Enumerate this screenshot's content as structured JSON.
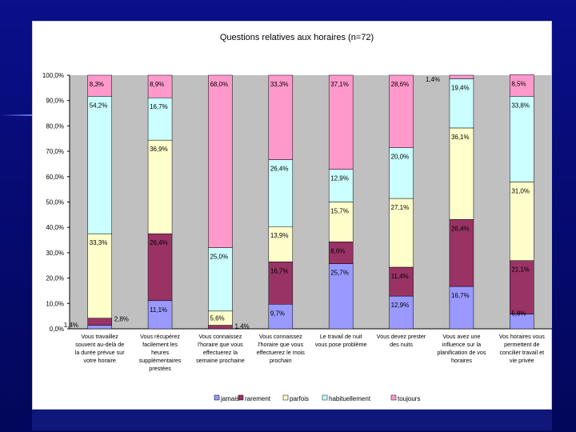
{
  "chart_data": {
    "type": "bar",
    "stacked": true,
    "title": "Questions relatives aux horaires (n=72)",
    "ylim": [
      0,
      100
    ],
    "yticks": [
      "0,0%",
      "10,0%",
      "20,0%",
      "30,0%",
      "40,0%",
      "50,0%",
      "60,0%",
      "70,0%",
      "80,0%",
      "90,0%",
      "100,0%"
    ],
    "grid": false,
    "legend_position": "bottom",
    "categories": [
      [
        "Vous travaillez",
        "souvent au-delà de",
        "la durée prévue sur",
        "votre horaire"
      ],
      [
        "Vous récupérez",
        "facilement les",
        "heures",
        "supplémentaires",
        "prestées"
      ],
      [
        "Vous connaissez",
        "l'horaire que vous",
        "effectuerez la",
        "semaine prochaine"
      ],
      [
        "Vous connaissez",
        "l'horaire que vous",
        "effectuerez le mois",
        "prochain"
      ],
      [
        "Le travail de nuit",
        "vous pose problème"
      ],
      [
        "Vous devez prester",
        "des nuits"
      ],
      [
        "Vous avez une",
        "influence sur la",
        "planification de vos",
        "horaires"
      ],
      [
        "Vos horaires vous",
        "permettent de",
        "concilier travail et",
        "vie privée"
      ]
    ],
    "series": [
      {
        "name": "jamais",
        "color": "#9999ff",
        "values": [
          1.4,
          11.1,
          0,
          9.7,
          25.7,
          12.9,
          16.7,
          5.8
        ],
        "labels": [
          "1,4%",
          "11,1%",
          "",
          "9,7%",
          "25,7%",
          "12,9%",
          "16,7%",
          "5,8%"
        ]
      },
      {
        "name": "rarement",
        "color": "#993366",
        "values": [
          2.8,
          26.4,
          1.4,
          16.7,
          8.6,
          11.4,
          26.4,
          21.1
        ],
        "labels": [
          "2,8%",
          "26,4%",
          "1,4%",
          "16,7%",
          "8,6%",
          "11,4%",
          "26,4%",
          "21,1%"
        ]
      },
      {
        "name": "parfois",
        "color": "#ffffcc",
        "values": [
          33.3,
          36.9,
          5.6,
          13.9,
          15.7,
          27.1,
          36.1,
          31.0
        ],
        "labels": [
          "33,3%",
          "36,9%",
          "5,6%",
          "13,9%",
          "15,7%",
          "27,1%",
          "36,1%",
          "31,0%"
        ]
      },
      {
        "name": "habituellement",
        "color": "#ccffff",
        "values": [
          54.2,
          16.7,
          25.0,
          26.4,
          12.9,
          20.0,
          19.4,
          33.8
        ],
        "labels": [
          "54,2%",
          "16,7%",
          "25,0%",
          "26,4%",
          "12,9%",
          "20,0%",
          "19,4%",
          "33,8%"
        ]
      },
      {
        "name": "toujours",
        "color": "#ff99cc",
        "values": [
          8.3,
          8.9,
          68.0,
          33.3,
          37.1,
          28.6,
          1.4,
          8.5
        ],
        "labels": [
          "8,3%",
          "8,9%",
          "68,0%",
          "33,3%",
          "37,1%",
          "28,6%",
          "1,4%",
          "8,5%"
        ]
      }
    ],
    "legend": [
      "jamais",
      "rarement",
      "parfois",
      "habituellement",
      "toujours"
    ],
    "plot_background": "#c0c0c0"
  }
}
